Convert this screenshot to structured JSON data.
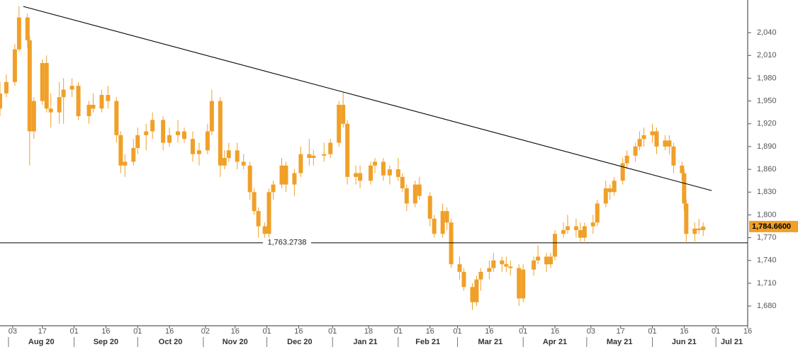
{
  "chart_data": {
    "type": "candlestick",
    "color": "#f0a028",
    "x": [
      "2020-07-28",
      "2020-07-31",
      "2020-08-04",
      "2020-08-06",
      "2020-08-10",
      "2020-08-11",
      "2020-08-13",
      "2020-08-17",
      "2020-08-19",
      "2020-08-21",
      "2020-08-25",
      "2020-08-27",
      "2020-08-31",
      "2020-09-03",
      "2020-09-08",
      "2020-09-10",
      "2020-09-14",
      "2020-09-17",
      "2020-09-21",
      "2020-09-23",
      "2020-09-25",
      "2020-09-29",
      "2020-10-01",
      "2020-10-05",
      "2020-10-08",
      "2020-10-13",
      "2020-10-16",
      "2020-10-20",
      "2020-10-23",
      "2020-10-27",
      "2020-10-30",
      "2020-11-03",
      "2020-11-05",
      "2020-11-09",
      "2020-11-11",
      "2020-11-13",
      "2020-11-17",
      "2020-11-20",
      "2020-11-23",
      "2020-11-25",
      "2020-11-27",
      "2020-11-30",
      "2020-12-02",
      "2020-12-04",
      "2020-12-08",
      "2020-12-10",
      "2020-12-14",
      "2020-12-17",
      "2020-12-21",
      "2020-12-23",
      "2020-12-28",
      "2020-12-31",
      "2021-01-04",
      "2021-01-06",
      "2021-01-08",
      "2021-01-12",
      "2021-01-14",
      "2021-01-19",
      "2021-01-21",
      "2021-01-25",
      "2021-01-28",
      "2021-02-01",
      "2021-02-03",
      "2021-02-05",
      "2021-02-09",
      "2021-02-11",
      "2021-02-16",
      "2021-02-18",
      "2021-02-22",
      "2021-02-24",
      "2021-02-26",
      "2021-03-02",
      "2021-03-04",
      "2021-03-08",
      "2021-03-10",
      "2021-03-12",
      "2021-03-16",
      "2021-03-18",
      "2021-03-22",
      "2021-03-24",
      "2021-03-26",
      "2021-03-30",
      "2021-04-01",
      "2021-04-06",
      "2021-04-08",
      "2021-04-12",
      "2021-04-14",
      "2021-04-16",
      "2021-04-20",
      "2021-04-22",
      "2021-04-26",
      "2021-04-28",
      "2021-04-30",
      "2021-05-04",
      "2021-05-06",
      "2021-05-10",
      "2021-05-12",
      "2021-05-14",
      "2021-05-18",
      "2021-05-20",
      "2021-05-24",
      "2021-05-26",
      "2021-05-28",
      "2021-06-01",
      "2021-06-03",
      "2021-06-07",
      "2021-06-09",
      "2021-06-11",
      "2021-06-15",
      "2021-06-16",
      "2021-06-17",
      "2021-06-21",
      "2021-06-23",
      "2021-06-25"
    ],
    "open": [
      1940,
      1960,
      1975,
      2018,
      2060,
      2030,
      1910,
      1950,
      2000,
      1940,
      1935,
      1955,
      1965,
      1970,
      1930,
      1945,
      1940,
      1958,
      1950,
      1905,
      1865,
      1870,
      1888,
      1905,
      1910,
      1925,
      1895,
      1905,
      1910,
      1900,
      1880,
      1885,
      1910,
      1950,
      1865,
      1875,
      1885,
      1870,
      1865,
      1830,
      1805,
      1785,
      1775,
      1830,
      1840,
      1865,
      1840,
      1855,
      1880,
      1875,
      1878,
      1880,
      1895,
      1945,
      1920,
      1850,
      1855,
      1845,
      1865,
      1870,
      1852,
      1860,
      1850,
      1835,
      1815,
      1840,
      1825,
      1795,
      1775,
      1805,
      1790,
      1735,
      1725,
      1705,
      1685,
      1715,
      1725,
      1730,
      1740,
      1735,
      1732,
      1730,
      1690,
      1728,
      1740,
      1745,
      1735,
      1745,
      1775,
      1780,
      1785,
      1780,
      1770,
      1785,
      1790,
      1815,
      1835,
      1830,
      1845,
      1868,
      1878,
      1890,
      1900,
      1905,
      1910,
      1890,
      1898,
      1890,
      1865,
      1855,
      1815,
      1775,
      1782,
      1780
    ],
    "high": [
      1975,
      1985,
      2025,
      2075,
      2065,
      2035,
      1955,
      2005,
      2010,
      1960,
      1975,
      1980,
      1980,
      1975,
      1950,
      1960,
      1965,
      1970,
      1955,
      1910,
      1880,
      1900,
      1915,
      1920,
      1935,
      1930,
      1915,
      1925,
      1915,
      1910,
      1895,
      1920,
      1965,
      1955,
      1885,
      1895,
      1895,
      1880,
      1870,
      1835,
      1810,
      1790,
      1835,
      1845,
      1875,
      1870,
      1860,
      1890,
      1900,
      1885,
      1895,
      1900,
      1950,
      1962,
      1925,
      1865,
      1865,
      1870,
      1875,
      1875,
      1865,
      1875,
      1855,
      1840,
      1845,
      1850,
      1830,
      1800,
      1815,
      1810,
      1795,
      1745,
      1730,
      1710,
      1720,
      1730,
      1740,
      1750,
      1745,
      1745,
      1740,
      1735,
      1735,
      1745,
      1760,
      1750,
      1750,
      1780,
      1790,
      1800,
      1795,
      1790,
      1790,
      1800,
      1820,
      1845,
      1840,
      1850,
      1875,
      1885,
      1895,
      1910,
      1915,
      1920,
      1915,
      1905,
      1905,
      1895,
      1870,
      1860,
      1820,
      1790,
      1795,
      1790
    ],
    "low": [
      1930,
      1955,
      1970,
      2015,
      2020,
      1865,
      1900,
      1945,
      1935,
      1915,
      1920,
      1920,
      1955,
      1925,
      1920,
      1935,
      1935,
      1940,
      1895,
      1855,
      1850,
      1865,
      1880,
      1885,
      1900,
      1885,
      1890,
      1895,
      1895,
      1870,
      1865,
      1880,
      1905,
      1850,
      1860,
      1870,
      1860,
      1860,
      1820,
      1800,
      1770,
      1765,
      1770,
      1820,
      1835,
      1830,
      1825,
      1850,
      1865,
      1865,
      1870,
      1875,
      1890,
      1915,
      1840,
      1840,
      1835,
      1840,
      1855,
      1845,
      1840,
      1845,
      1830,
      1805,
      1810,
      1820,
      1785,
      1770,
      1770,
      1780,
      1730,
      1715,
      1700,
      1675,
      1680,
      1700,
      1715,
      1725,
      1725,
      1725,
      1720,
      1680,
      1685,
      1720,
      1735,
      1725,
      1730,
      1740,
      1770,
      1775,
      1770,
      1765,
      1765,
      1775,
      1785,
      1810,
      1820,
      1825,
      1840,
      1860,
      1870,
      1885,
      1890,
      1895,
      1880,
      1885,
      1880,
      1855,
      1845,
      1805,
      1765,
      1765,
      1775,
      1772
    ],
    "close": [
      1960,
      1975,
      2018,
      2060,
      2030,
      1910,
      1950,
      2000,
      1940,
      1935,
      1955,
      1965,
      1970,
      1930,
      1945,
      1940,
      1958,
      1950,
      1905,
      1865,
      1870,
      1888,
      1905,
      1910,
      1925,
      1895,
      1905,
      1910,
      1900,
      1880,
      1885,
      1910,
      1950,
      1865,
      1875,
      1885,
      1870,
      1865,
      1830,
      1805,
      1785,
      1775,
      1830,
      1840,
      1865,
      1840,
      1855,
      1880,
      1875,
      1878,
      1880,
      1895,
      1945,
      1920,
      1850,
      1855,
      1845,
      1865,
      1870,
      1852,
      1860,
      1850,
      1835,
      1815,
      1840,
      1825,
      1795,
      1775,
      1805,
      1790,
      1735,
      1725,
      1705,
      1685,
      1715,
      1725,
      1730,
      1740,
      1735,
      1732,
      1730,
      1690,
      1728,
      1740,
      1745,
      1735,
      1745,
      1775,
      1780,
      1785,
      1780,
      1770,
      1785,
      1790,
      1815,
      1835,
      1830,
      1845,
      1868,
      1878,
      1890,
      1900,
      1905,
      1910,
      1890,
      1898,
      1890,
      1865,
      1855,
      1815,
      1775,
      1782,
      1780,
      1784.66
    ],
    "xlim": [
      "2020-07-28",
      "2021-07-16"
    ],
    "ylim": [
      1654,
      2083
    ],
    "yticks": [
      {
        "value": 1680,
        "label": "1,680"
      },
      {
        "value": 1710,
        "label": "1,710"
      },
      {
        "value": 1740,
        "label": "1,740"
      },
      {
        "value": 1770,
        "label": "1,770"
      },
      {
        "value": 1800,
        "label": "1,800"
      },
      {
        "value": 1830,
        "label": "1,830"
      },
      {
        "value": 1860,
        "label": "1,860"
      },
      {
        "value": 1890,
        "label": "1,890"
      },
      {
        "value": 1920,
        "label": "1,920"
      },
      {
        "value": 1950,
        "label": "1,950"
      },
      {
        "value": 1980,
        "label": "1,980"
      },
      {
        "value": 2010,
        "label": "2,010"
      },
      {
        "value": 2040,
        "label": "2,040"
      }
    ],
    "xticks": [
      {
        "value": "2020-08-03",
        "label": "03"
      },
      {
        "value": "2020-08-17",
        "label": "17"
      },
      {
        "value": "2020-09-01",
        "label": "01"
      },
      {
        "value": "2020-09-16",
        "label": "16"
      },
      {
        "value": "2020-10-01",
        "label": "01"
      },
      {
        "value": "2020-10-16",
        "label": "16"
      },
      {
        "value": "2020-11-02",
        "label": "02"
      },
      {
        "value": "2020-11-16",
        "label": "16"
      },
      {
        "value": "2020-12-01",
        "label": "01"
      },
      {
        "value": "2020-12-16",
        "label": "16"
      },
      {
        "value": "2021-01-01",
        "label": "01"
      },
      {
        "value": "2021-01-18",
        "label": "18"
      },
      {
        "value": "2021-02-01",
        "label": "01"
      },
      {
        "value": "2021-02-16",
        "label": "16"
      },
      {
        "value": "2021-03-01",
        "label": "01"
      },
      {
        "value": "2021-03-16",
        "label": "16"
      },
      {
        "value": "2021-04-01",
        "label": "01"
      },
      {
        "value": "2021-04-16",
        "label": "16"
      },
      {
        "value": "2021-05-03",
        "label": "03"
      },
      {
        "value": "2021-05-17",
        "label": "17"
      },
      {
        "value": "2021-06-01",
        "label": "01"
      },
      {
        "value": "2021-06-16",
        "label": "16"
      },
      {
        "value": "2021-07-01",
        "label": "01"
      },
      {
        "value": "2021-07-16",
        "label": "16"
      }
    ],
    "month_ticks": [
      {
        "value": "2020-08-01",
        "label": "Aug 20"
      },
      {
        "value": "2020-09-01",
        "label": "Sep 20"
      },
      {
        "value": "2020-10-01",
        "label": "Oct 20"
      },
      {
        "value": "2020-11-01",
        "label": "Nov 20"
      },
      {
        "value": "2020-12-01",
        "label": "Dec 20"
      },
      {
        "value": "2021-01-01",
        "label": "Jan 21"
      },
      {
        "value": "2021-02-01",
        "label": "Feb 21"
      },
      {
        "value": "2021-03-01",
        "label": "Mar 21"
      },
      {
        "value": "2021-04-01",
        "label": "Apr 21"
      },
      {
        "value": "2021-05-01",
        "label": "May 21"
      },
      {
        "value": "2021-06-01",
        "label": "Jun 21"
      },
      {
        "value": "2021-07-01",
        "label": "Jul 21"
      }
    ],
    "support_line": {
      "value": 1763.2738,
      "label": "1,763.2738"
    },
    "last_price": {
      "value": 1784.66,
      "label": "1,784.6600",
      "color": "#f0a028"
    },
    "trendline": {
      "x": [
        "2020-08-08",
        "2021-06-29"
      ],
      "values": [
        2074.5,
        1832
      ]
    }
  }
}
